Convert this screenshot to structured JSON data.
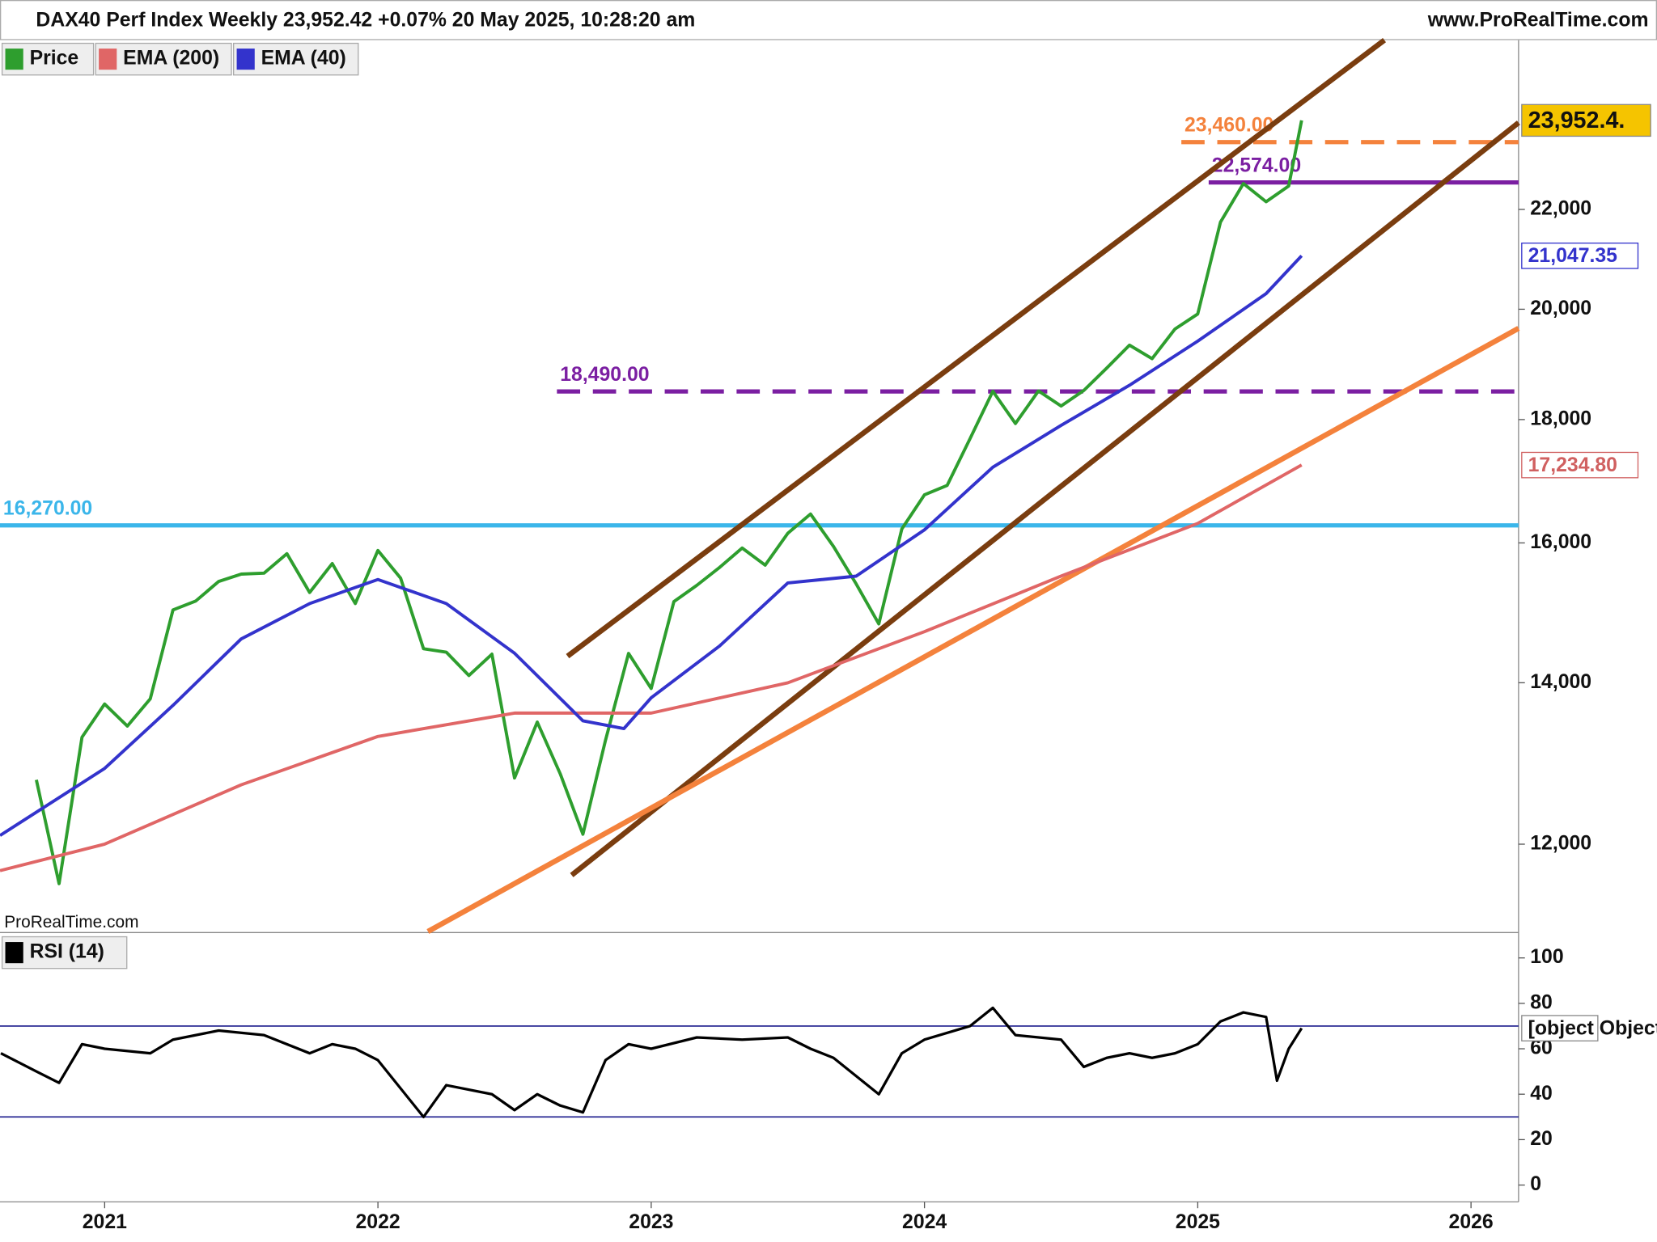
{
  "header": {
    "title": "DAX40 Perf Index Weekly 23,952.42 +0.07% 20 May 2025, 10:28:20 am",
    "site": "www.ProRealTime.com",
    "watermark": "ProRealTime.com"
  },
  "chart_data": [
    {
      "type": "line",
      "log_scale": true,
      "xlim": [
        2020.617,
        2026.174
      ],
      "ylim": [
        11040,
        25860
      ],
      "yticks": [
        {
          "value": 12000,
          "label": "12,000"
        },
        {
          "value": 14000,
          "label": "14,000"
        },
        {
          "value": 16000,
          "label": "16,000"
        },
        {
          "value": 18000,
          "label": "18,000"
        },
        {
          "value": 20000,
          "label": "20,000"
        },
        {
          "value": 22000,
          "label": "22,000"
        }
      ],
      "series": [
        {
          "name": "Price",
          "color": "#2e9e2e",
          "x": [
            2020.75,
            2020.833,
            2020.917,
            2021.0,
            2021.083,
            2021.167,
            2021.25,
            2021.333,
            2021.417,
            2021.5,
            2021.583,
            2021.667,
            2021.75,
            2021.833,
            2021.917,
            2022.0,
            2022.083,
            2022.167,
            2022.25,
            2022.333,
            2022.417,
            2022.5,
            2022.583,
            2022.667,
            2022.75,
            2022.833,
            2022.917,
            2023.0,
            2023.083,
            2023.167,
            2023.25,
            2023.333,
            2023.417,
            2023.5,
            2023.583,
            2023.667,
            2023.75,
            2023.833,
            2023.917,
            2024.0,
            2024.083,
            2024.167,
            2024.25,
            2024.333,
            2024.417,
            2024.5,
            2024.583,
            2024.667,
            2024.75,
            2024.833,
            2024.917,
            2025.0,
            2025.083,
            2025.167,
            2025.25,
            2025.333,
            2025.38
          ],
          "values": [
            12760,
            11556,
            13291,
            13719,
            13433,
            13786,
            15008,
            15136,
            15421,
            15531,
            15544,
            15835,
            15261,
            15688,
            15100,
            15885,
            15471,
            14461,
            14415,
            14098,
            14388,
            12784,
            13484,
            12835,
            12114,
            13253,
            14397,
            13924,
            15128,
            15365,
            15629,
            15922,
            15664,
            16148,
            16447,
            15947,
            15386,
            14810,
            16215,
            16752,
            16904,
            17678,
            18492,
            17932,
            18498,
            18235,
            18508,
            18907,
            19325,
            19078,
            19626,
            19909,
            21732,
            22551,
            22163,
            22497,
            23952.42
          ]
        },
        {
          "name": "EMA (200)",
          "color": "#e06666",
          "x": [
            2020.617,
            2021.0,
            2021.5,
            2022.0,
            2022.5,
            2023.0,
            2023.5,
            2024.0,
            2024.5,
            2025.0,
            2025.38
          ],
          "values": [
            11700,
            12000,
            12700,
            13300,
            13600,
            13600,
            14000,
            14700,
            15500,
            16300,
            17234.8
          ]
        },
        {
          "name": "EMA (40)",
          "color": "#3333cc",
          "x": [
            2020.617,
            2021.0,
            2021.25,
            2021.5,
            2021.75,
            2022.0,
            2022.25,
            2022.5,
            2022.75,
            2022.9,
            2023.0,
            2023.25,
            2023.5,
            2023.75,
            2024.0,
            2024.25,
            2024.5,
            2024.75,
            2025.0,
            2025.25,
            2025.38
          ],
          "values": [
            12100,
            12900,
            13700,
            14600,
            15100,
            15450,
            15100,
            14400,
            13500,
            13400,
            13800,
            14500,
            15400,
            15500,
            16200,
            17200,
            17900,
            18600,
            19400,
            20300,
            21047.35
          ]
        }
      ],
      "levels": [
        {
          "value": 16270,
          "label": "16,270.00",
          "color": "#3bb6ea",
          "dashed": false,
          "x_start": 2020.617
        },
        {
          "value": 18490,
          "label": "18,490.00",
          "color": "#7b1fa2",
          "dashed": true,
          "x_start": 2022.655
        },
        {
          "value": 22574,
          "label": "22,574.00",
          "color": "#7b1fa2",
          "dashed": false,
          "x_start": 2025.04
        },
        {
          "value": 23460,
          "label": "23,460.00",
          "color": "#f4823c",
          "dashed": true,
          "x_start": 2024.94
        }
      ],
      "trend_lines": [
        {
          "x": [
            2022.694,
            2025.683
          ],
          "values": [
            14360,
            25860
          ],
          "color": "#7a3d0f"
        },
        {
          "x": [
            2022.709,
            2026.174
          ],
          "values": [
            11650,
            23900
          ],
          "color": "#7a3d0f"
        },
        {
          "x": [
            2022.183,
            2026.174
          ],
          "values": [
            11040,
            19640
          ],
          "color": "#f4823c"
        }
      ],
      "price_markers": [
        {
          "value": 23952.42,
          "label": "23,952.4.",
          "color": "#f5c400"
        },
        {
          "value": 21047.35,
          "label": "21,047.35",
          "color": "#3333cc"
        },
        {
          "value": 17234.8,
          "label": "17,234.80",
          "color": "#d06060"
        }
      ]
    },
    {
      "type": "line",
      "log_scale": false,
      "xlim": [
        2020.617,
        2026.174
      ],
      "xticks": [
        2021,
        2022,
        2023,
        2024,
        2025,
        2026
      ],
      "ylim": [
        -7.4,
        110.7
      ],
      "yticks": [
        0,
        20,
        40,
        60,
        80,
        100
      ],
      "series": [
        {
          "name": "RSI (14)",
          "color": "#000000",
          "x": [
            2020.62,
            2020.75,
            2020.833,
            2020.917,
            2021.0,
            2021.167,
            2021.25,
            2021.417,
            2021.583,
            2021.75,
            2021.833,
            2021.917,
            2022.0,
            2022.167,
            2022.25,
            2022.417,
            2022.5,
            2022.583,
            2022.667,
            2022.75,
            2022.833,
            2022.917,
            2023.0,
            2023.167,
            2023.333,
            2023.5,
            2023.583,
            2023.667,
            2023.833,
            2023.917,
            2024.0,
            2024.167,
            2024.25,
            2024.333,
            2024.5,
            2024.583,
            2024.667,
            2024.75,
            2024.833,
            2024.917,
            2025.0,
            2025.083,
            2025.167,
            2025.25,
            2025.29,
            2025.333,
            2025.38
          ],
          "values": [
            58,
            50,
            45,
            62,
            60,
            58,
            64,
            68,
            66,
            58,
            62,
            60,
            55,
            30,
            44,
            40,
            33,
            40,
            35,
            32,
            55,
            62,
            60,
            65,
            64,
            65,
            60,
            56,
            40,
            58,
            64,
            70,
            78,
            66,
            64,
            52,
            56,
            58,
            56,
            58,
            62,
            72,
            76,
            74,
            46,
            60,
            69.056
          ]
        }
      ],
      "levels": [
        {
          "value": 70,
          "color": "#1a1a8c",
          "dashed": false,
          "x_start": 2020.617
        },
        {
          "value": 30,
          "color": "#1a1a8c",
          "dashed": false,
          "x_start": 2020.617
        }
      ],
      "price_markers": [
        {
          "value": 69.056,
          "color": "#ffffff"
        }
      ]
    }
  ]
}
